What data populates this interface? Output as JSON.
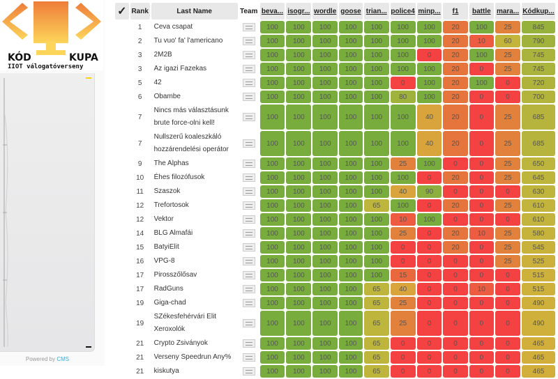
{
  "logo": {
    "word_left": "KÓD",
    "word_right": "KUPA",
    "subtitle": "IIOT válogatóverseny"
  },
  "footer": {
    "powered_by": "Powered by",
    "cms_link": "CMS"
  },
  "table": {
    "columns": {
      "check": "✓",
      "rank": "Rank",
      "last_name": "Last Name",
      "team": "Team",
      "scores": [
        "beva...",
        "isogr...",
        "wordle",
        "goose",
        "trian...",
        "police4",
        "minp...",
        "f1",
        "battle",
        "mara...",
        "Kódkup..."
      ]
    },
    "rows": [
      {
        "rank": "1",
        "name": "Ceva csapat",
        "scores": [
          100,
          100,
          100,
          100,
          100,
          100,
          100,
          20,
          100,
          25,
          845
        ]
      },
      {
        "rank": "2",
        "name": "Tu vuo' fa' l'americano",
        "scores": [
          100,
          100,
          100,
          100,
          100,
          100,
          100,
          20,
          10,
          60,
          790
        ]
      },
      {
        "rank": "3",
        "name": "2M2B",
        "scores": [
          100,
          100,
          100,
          100,
          100,
          100,
          0,
          20,
          100,
          25,
          745
        ]
      },
      {
        "rank": "3",
        "name": "Az igazi Fazekas",
        "scores": [
          100,
          100,
          100,
          100,
          100,
          100,
          100,
          20,
          0,
          25,
          745
        ]
      },
      {
        "rank": "5",
        "name": "42",
        "scores": [
          100,
          100,
          100,
          100,
          100,
          0,
          100,
          20,
          100,
          0,
          720
        ]
      },
      {
        "rank": "6",
        "name": "Obambe",
        "scores": [
          100,
          100,
          100,
          100,
          100,
          80,
          100,
          20,
          0,
          0,
          700
        ]
      },
      {
        "rank": "7",
        "name": "Nincs más választásunk brute force-olni kell!",
        "scores": [
          100,
          100,
          100,
          100,
          100,
          100,
          40,
          20,
          0,
          25,
          685
        ]
      },
      {
        "rank": "7",
        "name": "Nullszerű koaleszkáló hozzárendelési operátor",
        "scores": [
          100,
          100,
          100,
          100,
          100,
          100,
          40,
          20,
          0,
          25,
          685
        ]
      },
      {
        "rank": "9",
        "name": "The Alphas",
        "scores": [
          100,
          100,
          100,
          100,
          100,
          25,
          100,
          0,
          0,
          25,
          650
        ]
      },
      {
        "rank": "10",
        "name": "Éhes filozófusok",
        "scores": [
          100,
          100,
          100,
          100,
          100,
          100,
          0,
          20,
          0,
          25,
          645
        ]
      },
      {
        "rank": "11",
        "name": "Szaszok",
        "scores": [
          100,
          100,
          100,
          100,
          100,
          40,
          90,
          0,
          0,
          0,
          630
        ]
      },
      {
        "rank": "12",
        "name": "Trefortosok",
        "scores": [
          100,
          100,
          100,
          100,
          65,
          100,
          0,
          20,
          0,
          25,
          610
        ]
      },
      {
        "rank": "12",
        "name": "Vektor",
        "scores": [
          100,
          100,
          100,
          100,
          100,
          10,
          100,
          0,
          0,
          0,
          610
        ]
      },
      {
        "rank": "14",
        "name": "BLG Almafái",
        "scores": [
          100,
          100,
          100,
          100,
          100,
          25,
          0,
          20,
          10,
          25,
          580
        ]
      },
      {
        "rank": "15",
        "name": "BatyiElit",
        "scores": [
          100,
          100,
          100,
          100,
          100,
          0,
          0,
          20,
          0,
          25,
          545
        ]
      },
      {
        "rank": "16",
        "name": "VPG-8",
        "scores": [
          100,
          100,
          100,
          100,
          100,
          0,
          0,
          0,
          0,
          25,
          525
        ]
      },
      {
        "rank": "17",
        "name": "Pirosszőlősav",
        "scores": [
          100,
          100,
          100,
          100,
          100,
          15,
          0,
          0,
          0,
          0,
          515
        ]
      },
      {
        "rank": "17",
        "name": "RadGuns",
        "scores": [
          100,
          100,
          100,
          100,
          65,
          40,
          0,
          0,
          10,
          0,
          515
        ]
      },
      {
        "rank": "19",
        "name": "Giga-chad",
        "scores": [
          100,
          100,
          100,
          100,
          65,
          25,
          0,
          0,
          0,
          0,
          490
        ]
      },
      {
        "rank": "19",
        "name": "SZékesfehérvári Elit Xeroxolók",
        "scores": [
          100,
          100,
          100,
          100,
          65,
          25,
          0,
          0,
          0,
          0,
          490
        ]
      },
      {
        "rank": "21",
        "name": "Crypto Zsiványok",
        "scores": [
          100,
          100,
          100,
          100,
          65,
          0,
          0,
          0,
          0,
          0,
          465
        ]
      },
      {
        "rank": "21",
        "name": "Verseny Speedrun Any%",
        "scores": [
          100,
          100,
          100,
          100,
          65,
          0,
          0,
          0,
          0,
          0,
          465
        ]
      },
      {
        "rank": "21",
        "name": "kiskutya",
        "scores": [
          100,
          100,
          100,
          100,
          65,
          0,
          0,
          0,
          0,
          0,
          465
        ]
      }
    ]
  },
  "colors": {
    "full": "#78ad3d",
    "high": "#bdb53c",
    "mid": "#d4af3a",
    "low": "#e2813c",
    "zero": "#f44242"
  }
}
